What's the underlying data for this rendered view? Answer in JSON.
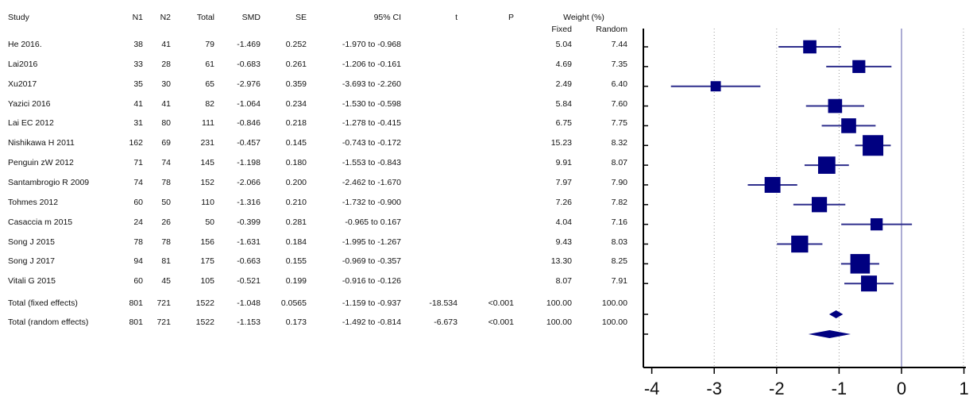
{
  "headers": {
    "study": "Study",
    "n1": "N1",
    "n2": "N2",
    "total": "Total",
    "smd": "SMD",
    "se": "SE",
    "ci": "95% CI",
    "t": "t",
    "p": "P",
    "weight": "Weight (%)",
    "fixed": "Fixed",
    "random": "Random"
  },
  "rows": [
    {
      "study": "He 2016.",
      "n1": "38",
      "n2": "41",
      "total": "79",
      "smd": "-1.469",
      "se": "0.252",
      "ci": "-1.970 to -0.968",
      "t": "",
      "p": "",
      "fixed": "5.04",
      "random": "7.44"
    },
    {
      "study": "Lai2016",
      "n1": "33",
      "n2": "28",
      "total": "61",
      "smd": "-0.683",
      "se": "0.261",
      "ci": "-1.206 to -0.161",
      "t": "",
      "p": "",
      "fixed": "4.69",
      "random": "7.35"
    },
    {
      "study": "Xu2017",
      "n1": "35",
      "n2": "30",
      "total": "65",
      "smd": "-2.976",
      "se": "0.359",
      "ci": "-3.693 to -2.260",
      "t": "",
      "p": "",
      "fixed": "2.49",
      "random": "6.40"
    },
    {
      "study": "Yazici 2016",
      "n1": "41",
      "n2": "41",
      "total": "82",
      "smd": "-1.064",
      "se": "0.234",
      "ci": "-1.530 to -0.598",
      "t": "",
      "p": "",
      "fixed": "5.84",
      "random": "7.60"
    },
    {
      "study": "Lai EC 2012",
      "n1": "31",
      "n2": "80",
      "total": "111",
      "smd": "-0.846",
      "se": "0.218",
      "ci": "-1.278 to -0.415",
      "t": "",
      "p": "",
      "fixed": "6.75",
      "random": "7.75"
    },
    {
      "study": "Nishikawa H 2011",
      "n1": "162",
      "n2": "69",
      "total": "231",
      "smd": "-0.457",
      "se": "0.145",
      "ci": "-0.743 to -0.172",
      "t": "",
      "p": "",
      "fixed": "15.23",
      "random": "8.32"
    },
    {
      "study": "Penguin zW 2012",
      "n1": "71",
      "n2": "74",
      "total": "145",
      "smd": "-1.198",
      "se": "0.180",
      "ci": "-1.553 to -0.843",
      "t": "",
      "p": "",
      "fixed": "9.91",
      "random": "8.07"
    },
    {
      "study": "Santambrogio R 2009",
      "n1": "74",
      "n2": "78",
      "total": "152",
      "smd": "-2.066",
      "se": "0.200",
      "ci": "-2.462 to -1.670",
      "t": "",
      "p": "",
      "fixed": "7.97",
      "random": "7.90"
    },
    {
      "study": "Tohmes 2012",
      "n1": "60",
      "n2": "50",
      "total": "110",
      "smd": "-1.316",
      "se": "0.210",
      "ci": "-1.732 to -0.900",
      "t": "",
      "p": "",
      "fixed": "7.26",
      "random": "7.82"
    },
    {
      "study": "Casaccia m 2015",
      "n1": "24",
      "n2": "26",
      "total": "50",
      "smd": "-0.399",
      "se": "0.281",
      "ci": "-0.965 to 0.167",
      "t": "",
      "p": "",
      "fixed": "4.04",
      "random": "7.16"
    },
    {
      "study": "Song J 2015",
      "n1": "78",
      "n2": "78",
      "total": "156",
      "smd": "-1.631",
      "se": "0.184",
      "ci": "-1.995 to -1.267",
      "t": "",
      "p": "",
      "fixed": "9.43",
      "random": "8.03"
    },
    {
      "study": "Song J 2017",
      "n1": "94",
      "n2": "81",
      "total": "175",
      "smd": "-0.663",
      "se": "0.155",
      "ci": "-0.969 to -0.357",
      "t": "",
      "p": "",
      "fixed": "13.30",
      "random": "8.25"
    },
    {
      "study": "Vitali G 2015",
      "n1": "60",
      "n2": "45",
      "total": "105",
      "smd": "-0.521",
      "se": "0.199",
      "ci": "-0.916 to -0.126",
      "t": "",
      "p": "",
      "fixed": "8.07",
      "random": "7.91"
    },
    {
      "study": "Total (fixed effects)",
      "n1": "801",
      "n2": "721",
      "total": "1522",
      "smd": "-1.048",
      "se": "0.0565",
      "ci": "-1.159 to -0.937",
      "t": "-18.534",
      "p": "<0.001",
      "fixed": "100.00",
      "random": "100.00"
    },
    {
      "study": "Total (random effects)",
      "n1": "801",
      "n2": "721",
      "total": "1522",
      "smd": "-1.153",
      "se": "0.173",
      "ci": "-1.492 to -0.814",
      "t": "-6.673",
      "p": "<0.001",
      "fixed": "100.00",
      "random": "100.00"
    }
  ],
  "chart_data": {
    "type": "scatter",
    "subtype": "forest-plot",
    "xlim": [
      -4,
      1
    ],
    "xticks": [
      "-4",
      "-3",
      "-2",
      "-1",
      "0",
      "1"
    ],
    "grid": "dotted vertical lines at -3, -2, -1",
    "reference_line": 0,
    "colors": {
      "marker": "#000080",
      "line": "#2e2e8c",
      "axis": "#000000",
      "grid": "#999999"
    },
    "studies": [
      {
        "label": "He 2016.",
        "smd": -1.469,
        "lo": -1.97,
        "hi": -0.968,
        "weight": 5.04
      },
      {
        "label": "Lai2016",
        "smd": -0.683,
        "lo": -1.206,
        "hi": -0.161,
        "weight": 4.69
      },
      {
        "label": "Xu2017",
        "smd": -2.976,
        "lo": -3.693,
        "hi": -2.26,
        "weight": 2.49
      },
      {
        "label": "Yazici 2016",
        "smd": -1.064,
        "lo": -1.53,
        "hi": -0.598,
        "weight": 5.84
      },
      {
        "label": "Lai EC 2012",
        "smd": -0.846,
        "lo": -1.278,
        "hi": -0.415,
        "weight": 6.75
      },
      {
        "label": "Nishikawa H 2011",
        "smd": -0.457,
        "lo": -0.743,
        "hi": -0.172,
        "weight": 15.23
      },
      {
        "label": "Penguin zW 2012",
        "smd": -1.198,
        "lo": -1.553,
        "hi": -0.843,
        "weight": 9.91
      },
      {
        "label": "Santambrogio R 2009",
        "smd": -2.066,
        "lo": -2.462,
        "hi": -1.67,
        "weight": 7.97
      },
      {
        "label": "Tohmes 2012",
        "smd": -1.316,
        "lo": -1.732,
        "hi": -0.9,
        "weight": 7.26
      },
      {
        "label": "Casaccia m 2015",
        "smd": -0.399,
        "lo": -0.965,
        "hi": 0.167,
        "weight": 4.04
      },
      {
        "label": "Song J 2015",
        "smd": -1.631,
        "lo": -1.995,
        "hi": -1.267,
        "weight": 9.43
      },
      {
        "label": "Song J 2017",
        "smd": -0.663,
        "lo": -0.969,
        "hi": -0.357,
        "weight": 13.3
      },
      {
        "label": "Vitali G 2015",
        "smd": -0.521,
        "lo": -0.916,
        "hi": -0.126,
        "weight": 8.07
      }
    ],
    "totals": [
      {
        "label": "Total (fixed effects)",
        "smd": -1.048,
        "lo": -1.159,
        "hi": -0.937
      },
      {
        "label": "Total (random effects)",
        "smd": -1.153,
        "lo": -1.492,
        "hi": -0.814
      }
    ]
  }
}
